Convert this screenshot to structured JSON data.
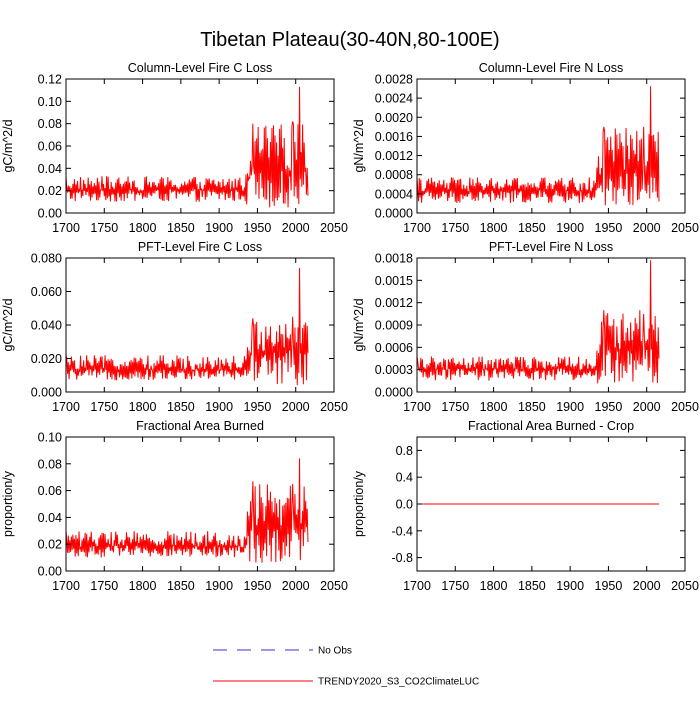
{
  "figure": {
    "title": "Tibetan Plateau(30-40N,80-100E)"
  },
  "colors": {
    "model_line": "#ff0000",
    "obs_line": "#3333cc",
    "axis": "#000000"
  },
  "legend": {
    "items": [
      {
        "label": "No Obs",
        "style": "dashed",
        "color": "#3333cc"
      },
      {
        "label": "TRENDY2020_S3_CO2ClimateLUC",
        "style": "solid",
        "color": "#ff0000"
      }
    ]
  },
  "chart_data": [
    {
      "id": "col_fire_c",
      "type": "line",
      "title": "Column-Level Fire C Loss",
      "ylabel": "gC/m^2/d",
      "xlabel": "",
      "xlim": [
        1700,
        2050
      ],
      "ylim": [
        0,
        0.12
      ],
      "x_ticks": [
        1700,
        1750,
        1800,
        1850,
        1900,
        1950,
        2000,
        2050
      ],
      "y_ticks": [
        0.0,
        0.02,
        0.04,
        0.06,
        0.08,
        0.1,
        0.12
      ],
      "y_tick_labels": [
        "0.00",
        "0.02",
        "0.04",
        "0.06",
        "0.08",
        "0.10",
        "0.12"
      ],
      "series": [
        {
          "name": "TRENDY2020_S3_CO2ClimateLUC",
          "x_start": 1700,
          "x_end": 2016,
          "base": 0.02,
          "pre_1935_range": [
            0.01,
            0.033
          ],
          "post_1935_range": [
            0.005,
            0.08
          ],
          "peaks": [
            [
              1944,
              0.08
            ],
            [
              1996,
              0.082
            ],
            [
              2005,
              0.113
            ]
          ]
        }
      ]
    },
    {
      "id": "col_fire_n",
      "type": "line",
      "title": "Column-Level Fire N Loss",
      "ylabel": "gN/m^2/d",
      "xlabel": "",
      "xlim": [
        1700,
        2050
      ],
      "ylim": [
        0,
        0.0028
      ],
      "x_ticks": [
        1700,
        1750,
        1800,
        1850,
        1900,
        1950,
        2000,
        2050
      ],
      "y_ticks": [
        0,
        0.0004,
        0.0008,
        0.0012,
        0.0016,
        0.002,
        0.0024,
        0.0028
      ],
      "y_tick_labels": [
        "0.0000",
        "0.0004",
        "0.0008",
        "0.0012",
        "0.0016",
        "0.0020",
        "0.0024",
        "0.0028"
      ],
      "series": [
        {
          "name": "TRENDY2020_S3_CO2ClimateLUC",
          "x_start": 1700,
          "x_end": 2016,
          "base": 0.00045,
          "pre_1935_range": [
            0.0002,
            0.00075
          ],
          "post_1935_range": [
            0.00015,
            0.0018
          ],
          "peaks": [
            [
              1944,
              0.0018
            ],
            [
              1996,
              0.0018
            ],
            [
              2005,
              0.00265
            ]
          ]
        }
      ]
    },
    {
      "id": "pft_fire_c",
      "type": "line",
      "title": "PFT-Level Fire C Loss",
      "ylabel": "gC/m^2/d",
      "xlabel": "",
      "xlim": [
        1700,
        2050
      ],
      "ylim": [
        0,
        0.08
      ],
      "x_ticks": [
        1700,
        1750,
        1800,
        1850,
        1900,
        1950,
        2000,
        2050
      ],
      "y_ticks": [
        0.0,
        0.02,
        0.04,
        0.06,
        0.08
      ],
      "y_tick_labels": [
        "0.000",
        "0.020",
        "0.040",
        "0.060",
        "0.080"
      ],
      "series": [
        {
          "name": "TRENDY2020_S3_CO2ClimateLUC",
          "x_start": 1700,
          "x_end": 2016,
          "base": 0.013,
          "pre_1935_range": [
            0.007,
            0.022
          ],
          "post_1935_range": [
            0.004,
            0.045
          ],
          "peaks": [
            [
              1944,
              0.044
            ],
            [
              1996,
              0.045
            ],
            [
              2005,
              0.074
            ]
          ]
        }
      ]
    },
    {
      "id": "pft_fire_n",
      "type": "line",
      "title": "PFT-Level Fire N Loss",
      "ylabel": "gN/m^2/d",
      "xlabel": "",
      "xlim": [
        1700,
        2050
      ],
      "ylim": [
        0,
        0.0018
      ],
      "x_ticks": [
        1700,
        1750,
        1800,
        1850,
        1900,
        1950,
        2000,
        2050
      ],
      "y_ticks": [
        0,
        0.0003,
        0.0006,
        0.0009,
        0.0012,
        0.0015,
        0.0018
      ],
      "y_tick_labels": [
        "0.0000",
        "0.0003",
        "0.0006",
        "0.0009",
        "0.0012",
        "0.0015",
        "0.0018"
      ],
      "series": [
        {
          "name": "TRENDY2020_S3_CO2ClimateLUC",
          "x_start": 1700,
          "x_end": 2016,
          "base": 0.0003,
          "pre_1935_range": [
            0.00015,
            0.00048
          ],
          "post_1935_range": [
            0.0001,
            0.0011
          ],
          "peaks": [
            [
              1944,
              0.0011
            ],
            [
              1996,
              0.00105
            ],
            [
              2005,
              0.00177
            ]
          ]
        }
      ]
    },
    {
      "id": "frac_burned",
      "type": "line",
      "title": "Fractional Area Burned",
      "ylabel": "proportion/y",
      "xlabel": "",
      "xlim": [
        1700,
        2050
      ],
      "ylim": [
        0,
        0.1
      ],
      "x_ticks": [
        1700,
        1750,
        1800,
        1850,
        1900,
        1950,
        2000,
        2050
      ],
      "y_ticks": [
        0.0,
        0.02,
        0.04,
        0.06,
        0.08,
        0.1
      ],
      "y_tick_labels": [
        "0.00",
        "0.02",
        "0.04",
        "0.06",
        "0.08",
        "0.10"
      ],
      "series": [
        {
          "name": "TRENDY2020_S3_CO2ClimateLUC",
          "x_start": 1700,
          "x_end": 2016,
          "base": 0.018,
          "pre_1935_range": [
            0.01,
            0.03
          ],
          "post_1935_range": [
            0.006,
            0.065
          ],
          "peaks": [
            [
              1944,
              0.067
            ],
            [
              1996,
              0.065
            ],
            [
              2005,
              0.084
            ]
          ]
        }
      ]
    },
    {
      "id": "frac_burned_crop",
      "type": "line",
      "title": "Fractional Area Burned - Crop",
      "ylabel": "proportion/y",
      "xlabel": "",
      "xlim": [
        1700,
        2050
      ],
      "ylim": [
        -1,
        1
      ],
      "x_ticks": [
        1700,
        1750,
        1800,
        1850,
        1900,
        1950,
        2000,
        2050
      ],
      "y_ticks": [
        -0.8,
        -0.4,
        0.0,
        0.4,
        0.8
      ],
      "y_tick_labels": [
        "-0.8",
        "-0.4",
        "0.0",
        "0.4",
        "0.8"
      ],
      "series": [
        {
          "name": "TRENDY2020_S3_CO2ClimateLUC",
          "x_start": 1700,
          "x_end": 2016,
          "constant": 0.0
        }
      ]
    }
  ]
}
